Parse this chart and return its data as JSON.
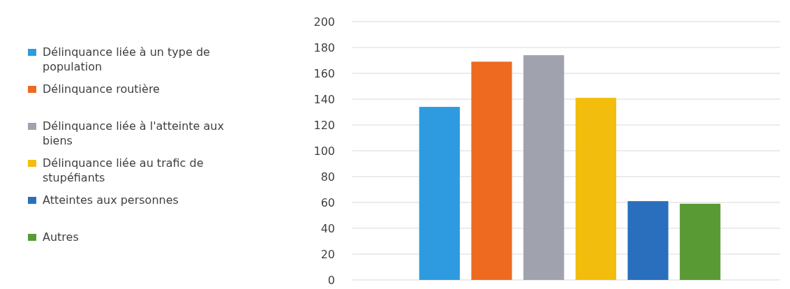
{
  "chart_data": {
    "type": "bar",
    "categories": [
      null
    ],
    "series": [
      {
        "name": "Délinquance liée à un type de population",
        "color": "#2e9be0",
        "values": [
          134
        ]
      },
      {
        "name": "Délinquance routière",
        "color": "#ee6a20",
        "values": [
          169
        ]
      },
      {
        "name": "Délinquance liée à l'atteinte aux biens",
        "color": "#a0a2ad",
        "values": [
          174
        ]
      },
      {
        "name": "Délinquance liée au trafic de stupéfiants",
        "color": "#f2bd0c",
        "values": [
          141
        ]
      },
      {
        "name": "Atteintes aux personnes",
        "color": "#2a6fbd",
        "values": [
          61
        ]
      },
      {
        "name": "Autres",
        "color": "#5a9a35",
        "values": [
          59
        ]
      }
    ],
    "ylim": [
      0,
      200
    ],
    "yticks": [
      0,
      20,
      40,
      60,
      80,
      100,
      120,
      140,
      160,
      180,
      200
    ],
    "grid": "y",
    "legend": "left"
  }
}
